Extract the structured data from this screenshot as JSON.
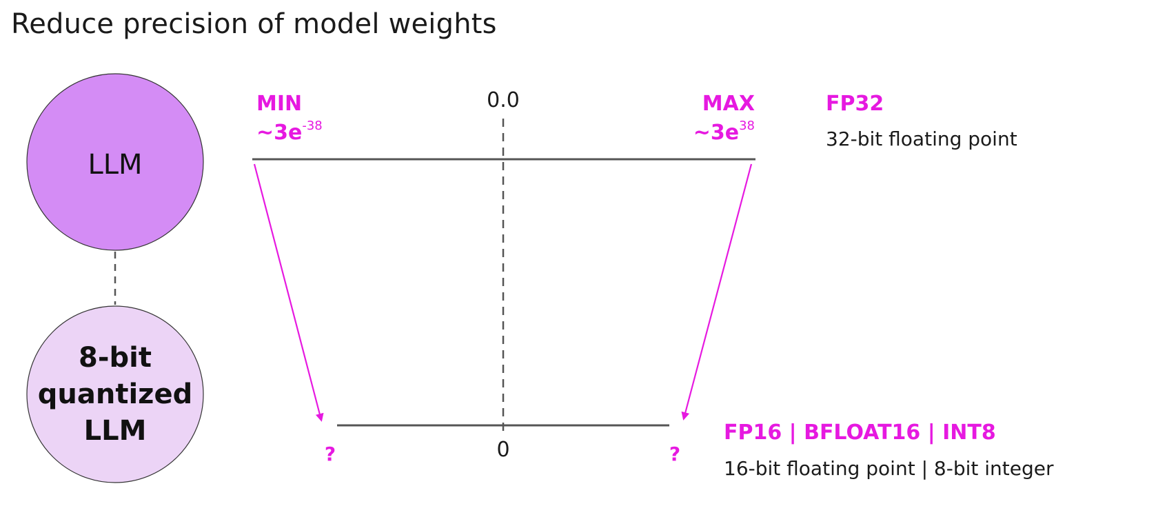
{
  "title": "Reduce precision of model weights",
  "colors": {
    "accent": "#e619e0",
    "llm_fill": "#d48cf5",
    "quantized_fill": "#ecd4f6",
    "line": "#555555",
    "text": "#1a1a1a"
  },
  "llm_circle": {
    "label": "LLM"
  },
  "quantized_circle": {
    "line1": "8-bit",
    "line2": "quantized",
    "line3": "LLM"
  },
  "fp32_range": {
    "min_label": "MIN",
    "min_value_base": "~3e",
    "min_value_exp": "-38",
    "zero_label": "0.0",
    "max_label": "MAX",
    "max_value_base": "~3e",
    "max_value_exp": "38",
    "format_name": "FP32",
    "format_desc": "32-bit floating point"
  },
  "reduced_range": {
    "left_label": "?",
    "zero_label": "0",
    "right_label": "?",
    "format_name": "FP16 | BFLOAT16 | INT8",
    "format_desc": "16-bit floating point | 8-bit integer"
  }
}
